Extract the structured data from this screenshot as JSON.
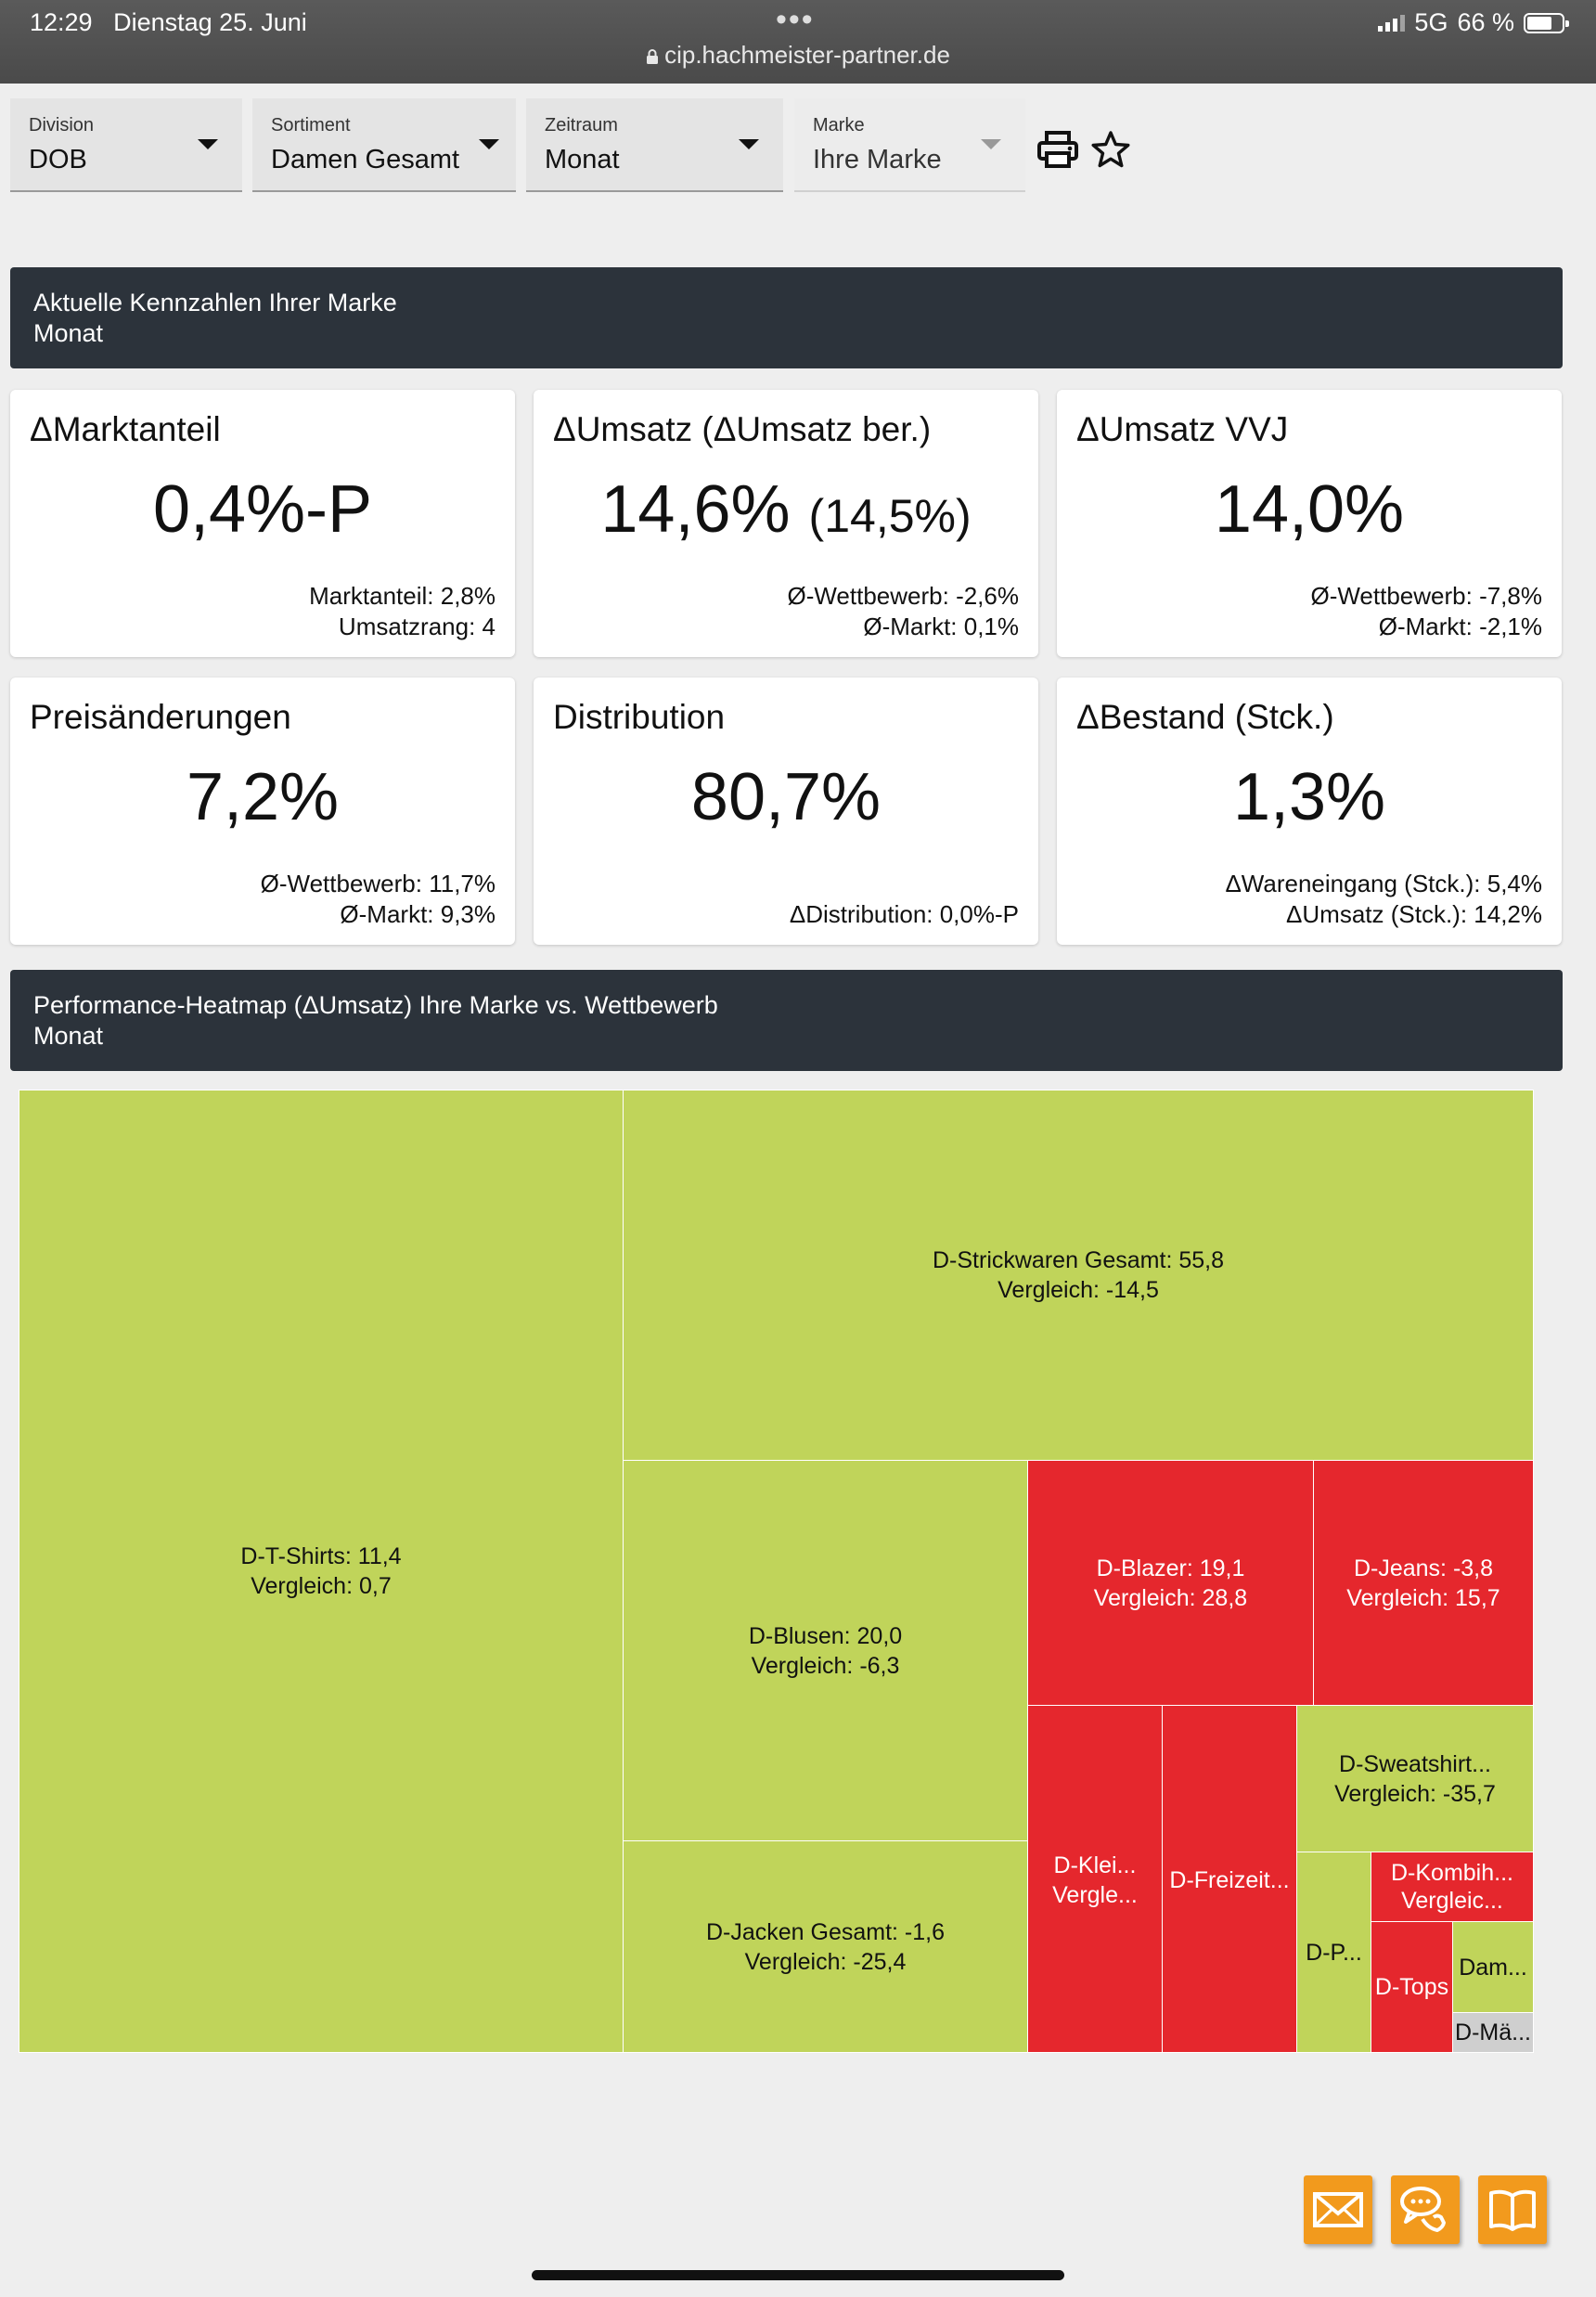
{
  "status_bar": {
    "time": "12:29",
    "date": "Dienstag 25. Juni",
    "url": "cip.hachmeister-partner.de",
    "network": "5G",
    "battery": "66 %"
  },
  "filters": [
    {
      "label": "Division",
      "value": "DOB"
    },
    {
      "label": "Sortiment",
      "value": "Damen Gesamt"
    },
    {
      "label": "Zeitraum",
      "value": "Monat"
    },
    {
      "label": "Marke",
      "value": "Ihre Marke"
    }
  ],
  "toolbar": {
    "print_icon": "printer-icon",
    "favorite_icon": "star-icon"
  },
  "kpi_section": {
    "title": "Aktuelle Kennzahlen Ihrer Marke",
    "subtitle": "Monat"
  },
  "kpis": [
    {
      "title": "ΔMarktanteil",
      "value": "0,4%-P",
      "value_extra": "",
      "sub1": "Marktanteil: 2,8%",
      "sub2": "Umsatzrang: 4"
    },
    {
      "title": "ΔUmsatz (ΔUmsatz ber.)",
      "value": "14,6%",
      "value_extra": "(14,5%)",
      "sub1": "Ø-Wettbewerb: -2,6%",
      "sub2": "Ø-Markt: 0,1%"
    },
    {
      "title": "ΔUmsatz VVJ",
      "value": "14,0%",
      "value_extra": "",
      "sub1": "Ø-Wettbewerb: -7,8%",
      "sub2": "Ø-Markt: -2,1%"
    },
    {
      "title": "Preisänderungen",
      "value": "7,2%",
      "value_extra": "",
      "sub1": "Ø-Wettbewerb: 11,7%",
      "sub2": "Ø-Markt: 9,3%"
    },
    {
      "title": "Distribution",
      "value": "80,7%",
      "value_extra": "",
      "sub1": "",
      "sub2": "ΔDistribution: 0,0%-P"
    },
    {
      "title": "ΔBestand (Stck.)",
      "value": "1,3%",
      "value_extra": "",
      "sub1": "ΔWareneingang (Stck.): 5,4%",
      "sub2": "ΔUmsatz (Stck.): 14,2%"
    }
  ],
  "heatmap_section": {
    "title": "Performance-Heatmap (ΔUmsatz) Ihre Marke vs. Wettbewerb",
    "subtitle": "Monat"
  },
  "chart_data": {
    "type": "heatmap",
    "title": "Performance-Heatmap (ΔUmsatz) Ihre Marke vs. Wettbewerb",
    "cells": [
      {
        "line1": "D-T-Shirts: 11,4",
        "line2": "Vergleich: 0,7",
        "value": 11.4,
        "comparison": 0.7,
        "status": "positive"
      },
      {
        "line1": "D-Strickwaren Gesamt: 55,8",
        "line2": "Vergleich: -14,5",
        "value": 55.8,
        "comparison": -14.5,
        "status": "positive"
      },
      {
        "line1": "D-Blusen: 20,0",
        "line2": "Vergleich: -6,3",
        "value": 20.0,
        "comparison": -6.3,
        "status": "positive"
      },
      {
        "line1": "D-Blazer: 19,1",
        "line2": "Vergleich: 28,8",
        "value": 19.1,
        "comparison": 28.8,
        "status": "negative"
      },
      {
        "line1": "D-Jeans: -3,8",
        "line2": "Vergleich: 15,7",
        "value": -3.8,
        "comparison": 15.7,
        "status": "negative"
      },
      {
        "line1": "D-Jacken Gesamt: -1,6",
        "line2": "Vergleich: -25,4",
        "value": -1.6,
        "comparison": -25.4,
        "status": "positive"
      },
      {
        "line1": "D-Klei...",
        "line2": "Vergle...",
        "status": "negative"
      },
      {
        "line1": "D-Freizeit...",
        "line2": "",
        "status": "negative"
      },
      {
        "line1": "D-Sweatshirt...",
        "line2": "Vergleich: -35,7",
        "comparison": -35.7,
        "status": "positive"
      },
      {
        "line1": "D-P...",
        "line2": "",
        "status": "positive"
      },
      {
        "line1": "D-Kombih...",
        "line2": "Vergleic...",
        "status": "negative"
      },
      {
        "line1": "D-Tops",
        "line2": "",
        "status": "negative"
      },
      {
        "line1": "Dam...",
        "line2": "",
        "status": "positive"
      },
      {
        "line1": "D-Mä...",
        "line2": "",
        "status": "neutral"
      }
    ],
    "colors": {
      "positive": "#c0d45a",
      "negative": "#e5272d",
      "neutral": "#cfcfcf"
    }
  },
  "actions": [
    {
      "name": "mail-icon"
    },
    {
      "name": "chat-support-icon"
    },
    {
      "name": "book-icon"
    }
  ]
}
